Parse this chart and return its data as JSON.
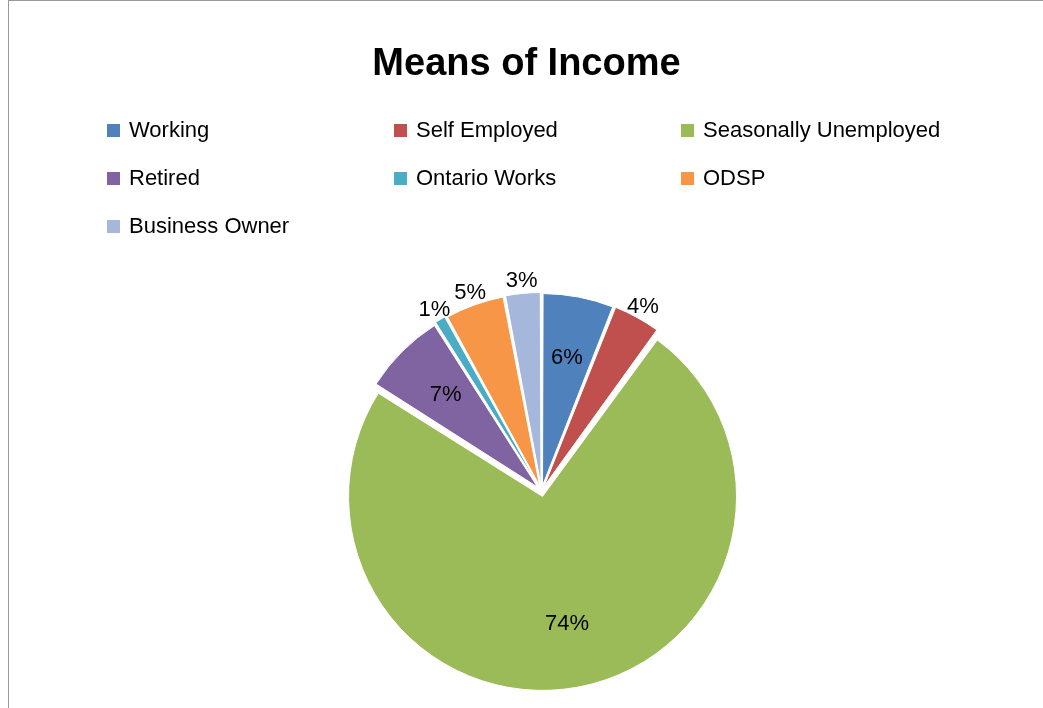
{
  "chart_data": {
    "type": "pie",
    "title": "Means of Income",
    "categories": [
      "Working",
      "Self Employed",
      "Seasonally Unemployed",
      "Retired",
      "Ontario Works",
      "ODSP",
      "Business Owner"
    ],
    "values": [
      6,
      4,
      74,
      7,
      1,
      5,
      3
    ],
    "colors": [
      "#4f81bd",
      "#c0504d",
      "#9bbb59",
      "#8064a2",
      "#4bacc6",
      "#f79646",
      "#a5b8db"
    ],
    "value_labels": [
      "6%",
      "4%",
      "74%",
      "7%",
      "1%",
      "5%",
      "3%"
    ],
    "legend": "top"
  }
}
